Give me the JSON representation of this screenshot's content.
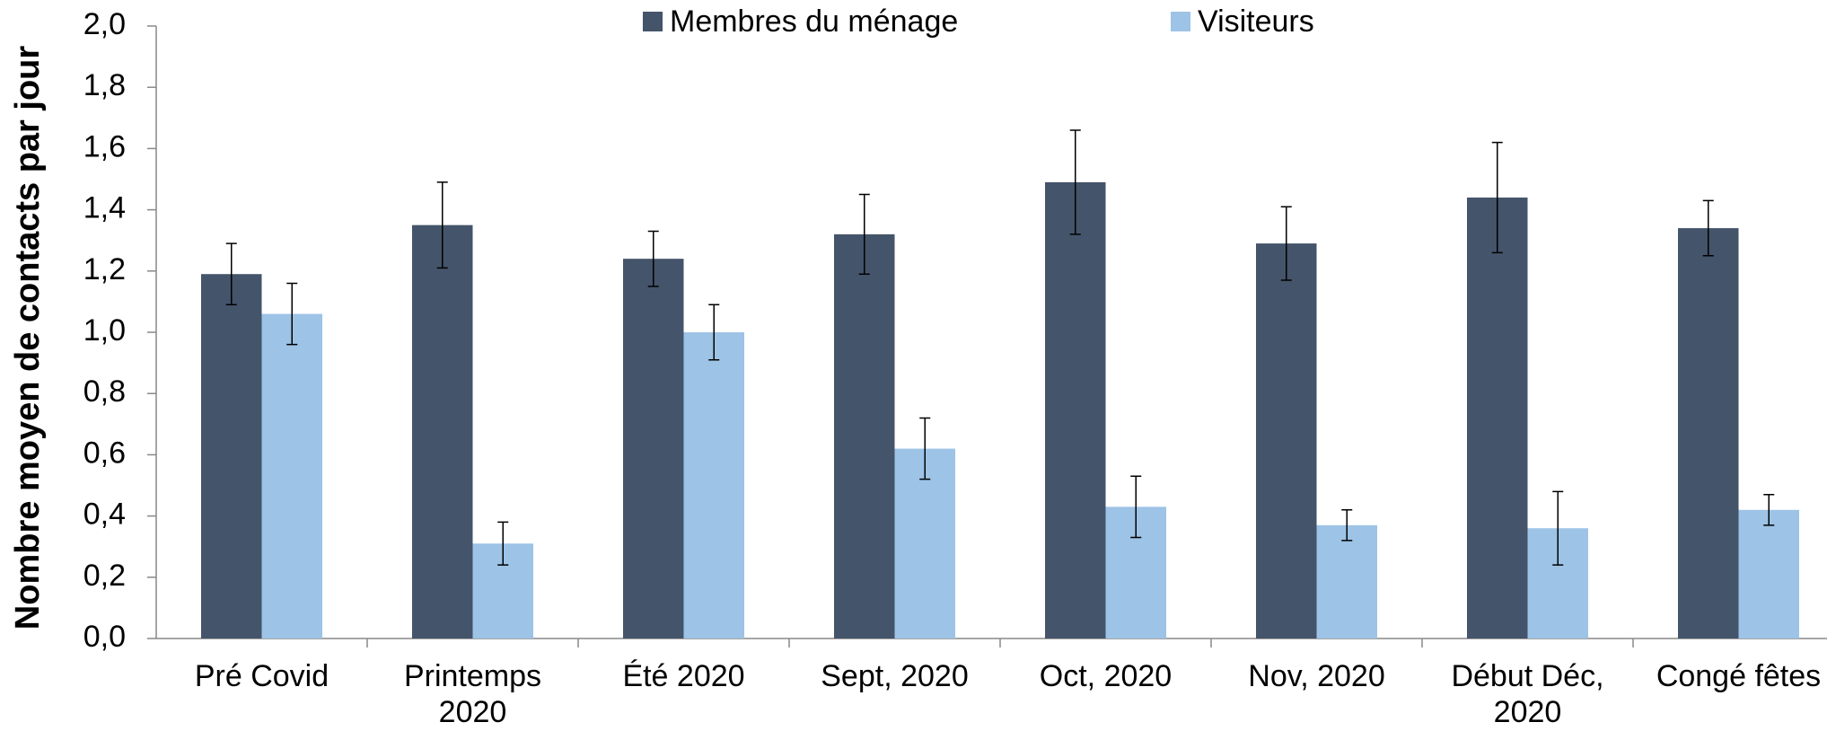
{
  "chart_data": {
    "type": "bar",
    "ylabel": "Nombre moyen de contacts par jour",
    "categories": [
      "Pré Covid",
      "Printemps 2020",
      "Été 2020",
      "Sept, 2020",
      "Oct, 2020",
      "Nov, 2020",
      "Début Déc, 2020",
      "Congé fêtes"
    ],
    "series": [
      {
        "name": "Membres du ménage",
        "color": "#44546a",
        "values": [
          1.19,
          1.35,
          1.24,
          1.32,
          1.49,
          1.29,
          1.44,
          1.34
        ],
        "errors": [
          0.1,
          0.14,
          0.09,
          0.13,
          0.17,
          0.12,
          0.18,
          0.09
        ]
      },
      {
        "name": "Visiteurs",
        "color": "#9dc3e6",
        "values": [
          1.06,
          0.31,
          1.0,
          0.62,
          0.43,
          0.37,
          0.36,
          0.42
        ],
        "errors": [
          0.1,
          0.07,
          0.09,
          0.1,
          0.1,
          0.05,
          0.12,
          0.05
        ]
      }
    ],
    "ylim": [
      0,
      2
    ],
    "yticks": [
      {
        "value": 0,
        "label": "0,0"
      },
      {
        "value": 0.2,
        "label": "0,2"
      },
      {
        "value": 0.4,
        "label": "0,4"
      },
      {
        "value": 0.6,
        "label": "0,6"
      },
      {
        "value": 0.8,
        "label": "0,8"
      },
      {
        "value": 1,
        "label": "1,0"
      },
      {
        "value": 1.2,
        "label": "1,2"
      },
      {
        "value": 1.4,
        "label": "1,4"
      },
      {
        "value": 1.6,
        "label": "1,6"
      },
      {
        "value": 1.8,
        "label": "1,8"
      },
      {
        "value": 2,
        "label": "2,0"
      }
    ],
    "grid": false,
    "legend": "top"
  }
}
